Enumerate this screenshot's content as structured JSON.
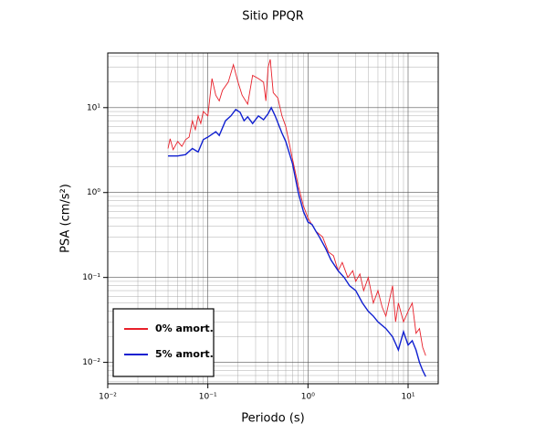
{
  "chart_data": {
    "type": "line",
    "title": "Sitio PPQR",
    "x_label": "Periodo (s)",
    "y_label": "PSA (cm/s²)",
    "xscale": "log",
    "yscale": "log",
    "grid": true,
    "minor_grid": true,
    "legend": "lower left",
    "xlim": [
      0.01,
      20
    ],
    "ylim": [
      0.0056,
      44
    ],
    "xticks": [
      {
        "value": 0.01,
        "label": "10⁻²"
      },
      {
        "value": 0.1,
        "label": "10⁻¹"
      },
      {
        "value": 1,
        "label": "10⁰"
      },
      {
        "value": 10,
        "label": "10¹"
      }
    ],
    "yticks": [
      {
        "value": 0.01,
        "label": "10⁻²"
      },
      {
        "value": 0.1,
        "label": "10⁻¹"
      },
      {
        "value": 1,
        "label": "10⁰"
      },
      {
        "value": 10,
        "label": "10¹"
      }
    ],
    "series": [
      {
        "name": "0% amort.",
        "color": "#e8202a",
        "x": [
          0.04,
          0.042,
          0.045,
          0.05,
          0.055,
          0.06,
          0.065,
          0.07,
          0.075,
          0.08,
          0.085,
          0.09,
          0.1,
          0.11,
          0.12,
          0.13,
          0.14,
          0.16,
          0.18,
          0.2,
          0.22,
          0.25,
          0.28,
          0.32,
          0.36,
          0.38,
          0.4,
          0.42,
          0.45,
          0.5,
          0.55,
          0.6,
          0.7,
          0.8,
          0.9,
          1.0,
          1.2,
          1.4,
          1.6,
          1.8,
          2.0,
          2.2,
          2.5,
          2.8,
          3.0,
          3.3,
          3.6,
          4.0,
          4.5,
          5,
          5.5,
          6,
          7,
          7.5,
          8,
          9,
          10,
          11,
          12,
          13,
          14,
          15
        ],
        "values": [
          3.3,
          4.3,
          3.2,
          4.0,
          3.5,
          4.2,
          4.5,
          7.0,
          5.5,
          8.0,
          6.5,
          9.0,
          8.0,
          22,
          14,
          12,
          16,
          20,
          32,
          20,
          14,
          11,
          24,
          22,
          20,
          12,
          30,
          37,
          15,
          13,
          8,
          6,
          2.5,
          1.2,
          0.7,
          0.5,
          0.35,
          0.3,
          0.2,
          0.18,
          0.12,
          0.15,
          0.1,
          0.12,
          0.09,
          0.11,
          0.07,
          0.1,
          0.05,
          0.07,
          0.045,
          0.035,
          0.08,
          0.03,
          0.05,
          0.03,
          0.04,
          0.05,
          0.022,
          0.025,
          0.015,
          0.012
        ]
      },
      {
        "name": "5% amort.",
        "color": "#1020d0",
        "x": [
          0.04,
          0.05,
          0.06,
          0.07,
          0.08,
          0.09,
          0.1,
          0.12,
          0.13,
          0.15,
          0.17,
          0.19,
          0.21,
          0.23,
          0.25,
          0.28,
          0.32,
          0.36,
          0.4,
          0.43,
          0.47,
          0.55,
          0.6,
          0.7,
          0.8,
          0.9,
          1.0,
          1.1,
          1.2,
          1.3,
          1.5,
          1.7,
          2.0,
          2.3,
          2.6,
          3.0,
          3.5,
          4,
          4.5,
          5,
          6,
          7,
          8,
          9,
          10,
          11,
          12,
          13,
          14,
          15
        ],
        "values": [
          2.7,
          2.7,
          2.8,
          3.3,
          3.0,
          4.2,
          4.5,
          5.2,
          4.7,
          7.0,
          8.0,
          9.5,
          8.8,
          7.0,
          7.8,
          6.5,
          8.0,
          7.2,
          8.5,
          10,
          8.0,
          5.0,
          4.0,
          2.2,
          1.0,
          0.6,
          0.45,
          0.42,
          0.35,
          0.3,
          0.22,
          0.16,
          0.12,
          0.1,
          0.08,
          0.07,
          0.05,
          0.04,
          0.035,
          0.03,
          0.025,
          0.02,
          0.014,
          0.023,
          0.016,
          0.018,
          0.014,
          0.01,
          0.008,
          0.0068
        ]
      }
    ]
  }
}
